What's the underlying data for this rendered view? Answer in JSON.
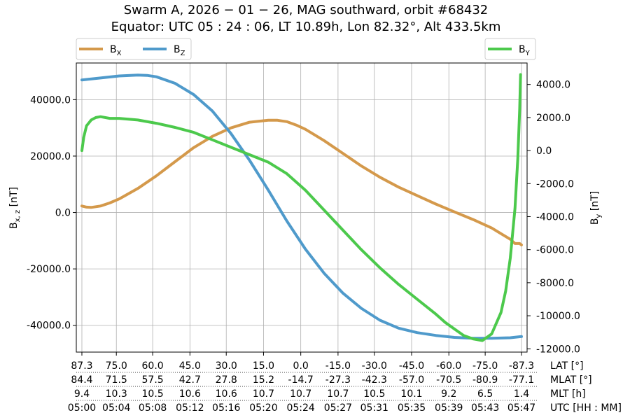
{
  "chart_data": {
    "type": "line",
    "title_line1": "Swarm A,  2026 − 01 − 26,  MAG southward,  orbit #68432",
    "title_line2": "Equator:  UTC 05 : 24 : 06,  LT 10.89h,  Lon 82.32°,  Alt 433.5km",
    "left_ylabel": "B",
    "left_ylabel_sub": "x, z",
    "left_ylabel_unit": " [nT]",
    "right_ylabel": "B",
    "right_ylabel_sub": "y",
    "right_ylabel_unit": " [nT]",
    "grid": true,
    "legend_left": [
      {
        "base": "B",
        "sub": "X",
        "series": "Bx"
      },
      {
        "base": "B",
        "sub": "Z",
        "series": "Bz"
      }
    ],
    "legend_right": [
      {
        "base": "B",
        "sub": "Y",
        "series": "By"
      }
    ],
    "x_ticks_minutes": [
      0,
      3.7,
      7.6,
      11.6,
      15.5,
      19.5,
      23.5,
      27.5,
      31.4,
      35.4,
      39.4,
      43.3,
      47.2
    ],
    "xlim": [
      -0.6,
      47.8
    ],
    "left_ylim": [
      -49500,
      53000
    ],
    "left_yticks": [
      -40000,
      -20000,
      0,
      20000,
      40000
    ],
    "left_ytick_labels": [
      "-40000.0",
      "-20000.0",
      "0.0",
      "20000.0",
      "40000.0"
    ],
    "right_ylim": [
      -12200,
      5300
    ],
    "right_yticks": [
      -12000,
      -10000,
      -8000,
      -6000,
      -4000,
      -2000,
      0,
      2000,
      4000
    ],
    "right_ytick_labels": [
      "-12000.0",
      "-10000.0",
      "-8000.0",
      "-6000.0",
      "-4000.0",
      "-2000.0",
      "0.0",
      "2000.0",
      "4000.0"
    ],
    "tick_rows": [
      {
        "label": "LAT [°]",
        "values": [
          "87.3",
          "75.0",
          "60.0",
          "45.0",
          "30.0",
          "15.0",
          "0.0",
          "-15.0",
          "-30.0",
          "-45.0",
          "-60.0",
          "-75.0",
          "-87.3"
        ]
      },
      {
        "label": "MLAT [°]",
        "values": [
          "84.4",
          "71.5",
          "57.5",
          "42.7",
          "27.8",
          "15.2",
          "-14.7",
          "-27.3",
          "-42.3",
          "-57.0",
          "-70.5",
          "-80.9",
          "-77.1"
        ]
      },
      {
        "label": "MLT [h]",
        "values": [
          "9.4",
          "10.3",
          "10.5",
          "10.6",
          "10.6",
          "10.7",
          "10.7",
          "10.7",
          "10.5",
          "10.1",
          "9.2",
          "6.5",
          "1.4"
        ]
      },
      {
        "label": "UTC [HH : MM]",
        "values": [
          "05:00",
          "05:04",
          "05:08",
          "05:12",
          "05:16",
          "05:20",
          "05:24",
          "05:27",
          "05:31",
          "05:35",
          "05:39",
          "05:43",
          "05:47"
        ]
      }
    ],
    "series": [
      {
        "name": "Bx",
        "axis": "left",
        "color": "#d4994b",
        "x": [
          0,
          0.5,
          1,
          2,
          3,
          4,
          6,
          8,
          10,
          12,
          14,
          16,
          18,
          20,
          21,
          22,
          23,
          24,
          26,
          28,
          30,
          32,
          34,
          36,
          38,
          40,
          42,
          44,
          45,
          46,
          46.5,
          47,
          47.2
        ],
        "y": [
          2300,
          1900,
          1800,
          2300,
          3400,
          4800,
          8500,
          13000,
          18000,
          23000,
          27000,
          30000,
          32000,
          32700,
          32700,
          32200,
          31000,
          29500,
          25500,
          21000,
          16500,
          12500,
          9000,
          6000,
          3000,
          200,
          -2500,
          -5500,
          -7500,
          -9500,
          -11000,
          -11000,
          -11500
        ]
      },
      {
        "name": "Bz",
        "axis": "left",
        "color": "#4f9acb",
        "x": [
          0,
          2,
          4,
          6,
          7,
          8,
          10,
          12,
          14,
          16,
          18,
          20,
          22,
          24,
          26,
          28,
          30,
          32,
          34,
          36,
          38,
          40,
          42,
          44,
          46,
          47.2
        ],
        "y": [
          47000,
          47700,
          48400,
          48700,
          48600,
          48100,
          45800,
          41800,
          36000,
          28000,
          18500,
          8000,
          -3000,
          -13000,
          -21500,
          -28500,
          -34000,
          -38200,
          -41000,
          -42600,
          -43600,
          -44300,
          -44600,
          -44600,
          -44400,
          -44000
        ]
      },
      {
        "name": "By",
        "axis": "right",
        "color": "#4cc94c",
        "x": [
          0,
          0.2,
          0.5,
          1,
          1.5,
          2,
          3,
          4,
          6,
          8,
          10,
          12,
          14,
          16,
          18,
          20,
          22,
          24,
          26,
          28,
          30,
          32,
          34,
          36,
          38,
          39,
          40,
          41,
          42,
          43,
          44,
          45,
          45.5,
          46,
          46.5,
          46.8,
          47,
          47.1
        ],
        "y": [
          0,
          800,
          1500,
          1850,
          2000,
          2050,
          1950,
          1950,
          1850,
          1650,
          1400,
          1100,
          650,
          200,
          -250,
          -700,
          -1400,
          -2400,
          -3600,
          -4800,
          -6000,
          -7100,
          -8100,
          -9000,
          -9900,
          -10400,
          -10800,
          -11200,
          -11400,
          -11500,
          -11100,
          -9800,
          -8500,
          -6500,
          -3500,
          -500,
          2500,
          4600
        ]
      }
    ]
  }
}
